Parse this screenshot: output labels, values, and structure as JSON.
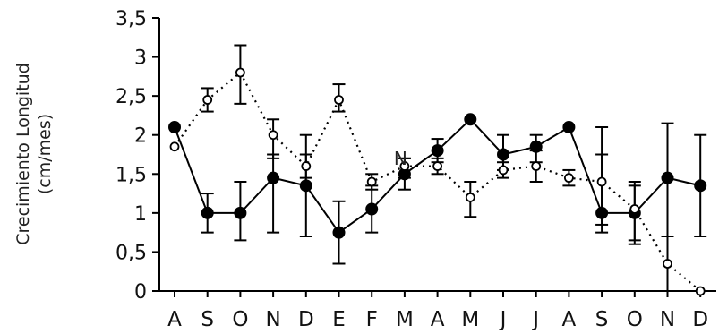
{
  "chart_data": {
    "type": "line",
    "title": "",
    "ylabel_lines": [
      "Crecimiento Longitud",
      "(cm/mes)"
    ],
    "xlabel": "",
    "categories": [
      "A",
      "S",
      "O",
      "N",
      "D",
      "E",
      "F",
      "M",
      "A",
      "M",
      "J",
      "J",
      "A",
      "S",
      "O",
      "N",
      "D"
    ],
    "ylim": [
      0,
      3.5
    ],
    "yticks": [
      0,
      0.5,
      1,
      1.5,
      2,
      2.5,
      3,
      3.5
    ],
    "ytick_labels": [
      "0",
      "0,5",
      "1",
      "1,5",
      "2",
      "2,5",
      "3",
      "3,5"
    ],
    "grid": false,
    "annotation": "N",
    "series": [
      {
        "marker": "filled-circle",
        "line": "solid",
        "color": "#000000",
        "values": [
          2.1,
          1.0,
          1.0,
          1.45,
          1.35,
          0.75,
          1.05,
          1.5,
          1.8,
          2.2,
          1.75,
          1.85,
          2.1,
          1.0,
          1.0,
          1.45,
          1.35
        ],
        "err_low": [
          null,
          0.75,
          0.65,
          0.75,
          0.7,
          0.35,
          0.75,
          1.3,
          1.65,
          null,
          1.55,
          1.65,
          null,
          0.75,
          0.65,
          0.0,
          0.7
        ],
        "err_high": [
          null,
          1.25,
          1.4,
          1.75,
          2.0,
          1.15,
          1.35,
          1.7,
          1.95,
          null,
          2.0,
          2.0,
          null,
          2.1,
          1.4,
          2.15,
          2.0
        ]
      },
      {
        "marker": "open-circle",
        "line": "dotted",
        "color": "#000000",
        "values": [
          1.85,
          2.45,
          2.8,
          2.0,
          1.6,
          2.45,
          1.4,
          1.6,
          1.6,
          1.2,
          1.55,
          1.6,
          1.45,
          1.4,
          1.05,
          0.35,
          0.0
        ],
        "err_low": [
          null,
          2.3,
          2.4,
          1.7,
          1.45,
          2.3,
          1.3,
          1.45,
          1.5,
          0.95,
          1.45,
          1.4,
          1.35,
          0.85,
          0.6,
          0.0,
          null
        ],
        "err_high": [
          null,
          2.6,
          3.15,
          2.2,
          1.75,
          2.65,
          1.5,
          1.7,
          1.7,
          1.4,
          1.65,
          1.8,
          1.55,
          1.75,
          1.35,
          0.7,
          null
        ]
      }
    ]
  }
}
